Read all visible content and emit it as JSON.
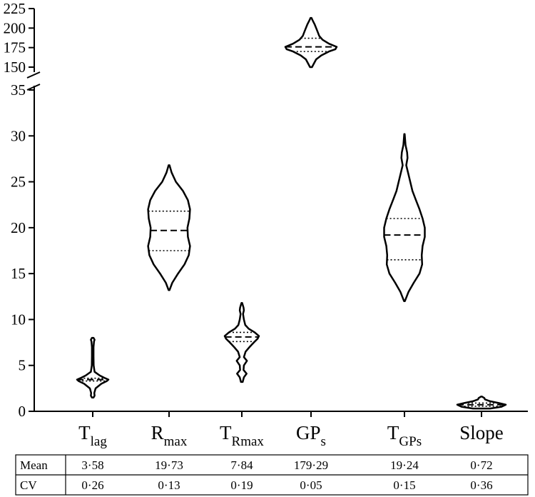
{
  "chart_data": {
    "type": "violin",
    "title": "",
    "xlabel": "",
    "ylabel": "",
    "broken_axis": true,
    "ylim_lower": [
      0,
      35
    ],
    "ylim_upper": [
      150,
      225
    ],
    "yticks_lower": [
      "0",
      "5",
      "10",
      "15",
      "20",
      "25",
      "30",
      "35"
    ],
    "yticks_upper": [
      "150",
      "175",
      "200",
      "225"
    ],
    "grid": false,
    "categories": [
      {
        "base": "T",
        "sub": "lag"
      },
      {
        "base": "R",
        "sub": "max"
      },
      {
        "base": "T",
        "sub": "Rmax"
      },
      {
        "base": "GP",
        "sub": "s"
      },
      {
        "base": "T",
        "sub": "GPs"
      },
      {
        "base": "Slope",
        "sub": ""
      }
    ],
    "violins": [
      {
        "min": 1.5,
        "max": 8.0,
        "q1": 3.3,
        "median": 3.45,
        "q3": 3.6,
        "profile": [
          [
            1.5,
            0.05
          ],
          [
            1.7,
            0.12
          ],
          [
            2.0,
            0.1
          ],
          [
            2.5,
            0.18
          ],
          [
            3.0,
            0.55
          ],
          [
            3.3,
            0.9
          ],
          [
            3.45,
            1.0
          ],
          [
            3.6,
            0.8
          ],
          [
            3.9,
            0.45
          ],
          [
            4.3,
            0.12
          ],
          [
            5.0,
            0.06
          ],
          [
            6.0,
            0.05
          ],
          [
            7.0,
            0.05
          ],
          [
            7.6,
            0.08
          ],
          [
            7.8,
            0.12
          ],
          [
            8.0,
            0.05
          ]
        ]
      },
      {
        "min": 13.2,
        "max": 26.8,
        "q1": 17.5,
        "median": 19.7,
        "q3": 21.8,
        "profile": [
          [
            13.2,
            0.02
          ],
          [
            14.0,
            0.15
          ],
          [
            15.0,
            0.42
          ],
          [
            16.0,
            0.72
          ],
          [
            17.0,
            0.92
          ],
          [
            18.0,
            0.98
          ],
          [
            19.0,
            0.88
          ],
          [
            20.0,
            0.86
          ],
          [
            21.0,
            0.95
          ],
          [
            22.0,
            0.98
          ],
          [
            23.0,
            0.88
          ],
          [
            24.0,
            0.65
          ],
          [
            25.0,
            0.32
          ],
          [
            26.0,
            0.12
          ],
          [
            26.8,
            0.02
          ]
        ]
      },
      {
        "min": 3.2,
        "max": 11.8,
        "q1": 7.6,
        "median": 8.1,
        "q3": 8.6,
        "profile": [
          [
            3.2,
            0.05
          ],
          [
            3.7,
            0.12
          ],
          [
            4.1,
            0.28
          ],
          [
            4.5,
            0.1
          ],
          [
            5.0,
            0.12
          ],
          [
            5.5,
            0.3
          ],
          [
            5.9,
            0.12
          ],
          [
            6.5,
            0.22
          ],
          [
            7.0,
            0.45
          ],
          [
            7.5,
            0.7
          ],
          [
            7.9,
            0.92
          ],
          [
            8.2,
            1.0
          ],
          [
            8.6,
            0.75
          ],
          [
            9.0,
            0.4
          ],
          [
            9.4,
            0.2
          ],
          [
            10.0,
            0.12
          ],
          [
            10.6,
            0.07
          ],
          [
            11.0,
            0.12
          ],
          [
            11.3,
            0.1
          ],
          [
            11.8,
            0.02
          ]
        ]
      },
      {
        "min": 150,
        "max": 213,
        "q1": 170,
        "median": 176,
        "q3": 187,
        "profile": [
          [
            150,
            0.04
          ],
          [
            155,
            0.12
          ],
          [
            160,
            0.2
          ],
          [
            165,
            0.4
          ],
          [
            170,
            0.7
          ],
          [
            173,
            0.95
          ],
          [
            176,
            1.0
          ],
          [
            180,
            0.7
          ],
          [
            185,
            0.45
          ],
          [
            190,
            0.32
          ],
          [
            195,
            0.26
          ],
          [
            200,
            0.2
          ],
          [
            205,
            0.14
          ],
          [
            210,
            0.06
          ],
          [
            213,
            0.02
          ]
        ]
      },
      {
        "min": 12.0,
        "max": 30.2,
        "q1": 16.5,
        "median": 19.2,
        "q3": 21.0,
        "profile": [
          [
            12.0,
            0.02
          ],
          [
            13.0,
            0.18
          ],
          [
            14.0,
            0.42
          ],
          [
            15.0,
            0.68
          ],
          [
            16.0,
            0.8
          ],
          [
            17.0,
            0.78
          ],
          [
            18.0,
            0.82
          ],
          [
            19.0,
            0.92
          ],
          [
            20.0,
            0.92
          ],
          [
            21.0,
            0.82
          ],
          [
            22.0,
            0.68
          ],
          [
            23.0,
            0.52
          ],
          [
            24.0,
            0.36
          ],
          [
            25.0,
            0.26
          ],
          [
            26.0,
            0.16
          ],
          [
            26.8,
            0.08
          ],
          [
            27.6,
            0.14
          ],
          [
            28.2,
            0.12
          ],
          [
            29.0,
            0.05
          ],
          [
            30.2,
            0.01
          ]
        ]
      },
      {
        "min": 0.3,
        "max": 1.6,
        "q1": 0.55,
        "median": 0.72,
        "q3": 0.9,
        "profile": [
          [
            0.3,
            0.3
          ],
          [
            0.5,
            0.7
          ],
          [
            0.72,
            0.85
          ],
          [
            0.9,
            0.6
          ],
          [
            1.1,
            0.3
          ],
          [
            1.3,
            0.12
          ],
          [
            1.45,
            0.1
          ],
          [
            1.6,
            0.02
          ]
        ]
      }
    ],
    "table": {
      "rows": [
        {
          "label": "Mean",
          "values": [
            "3·58",
            "19·73",
            "7·84",
            "179·29",
            "19·24",
            "0·72"
          ]
        },
        {
          "label": "CV",
          "values": [
            "0·26",
            "0·13",
            "0·19",
            "0·05",
            "0·15",
            "0·36"
          ]
        }
      ]
    }
  }
}
